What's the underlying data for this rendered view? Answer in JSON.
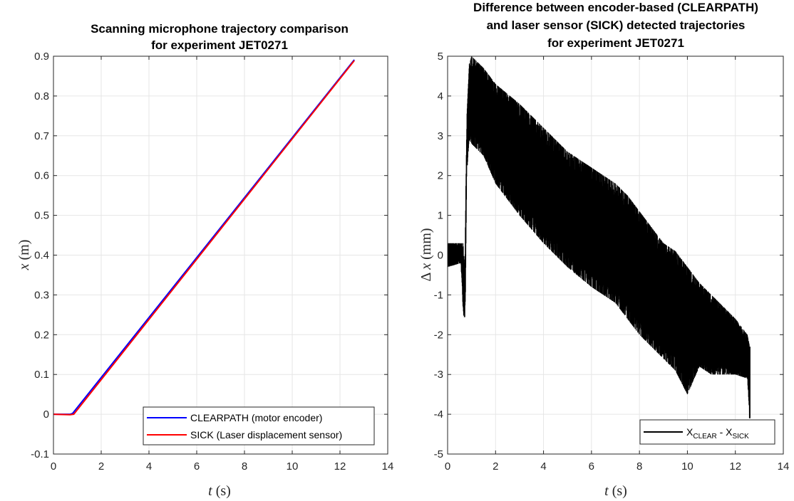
{
  "chart_data": [
    {
      "type": "line",
      "title": [
        "Scanning microphone trajectory comparison",
        "for experiment JET0271"
      ],
      "xlabel": {
        "var": "t",
        "unit": "(s)"
      },
      "ylabel": {
        "var": "x",
        "unit": "(m)"
      },
      "xlim": [
        0,
        14
      ],
      "ylim": [
        -0.1,
        0.9
      ],
      "xticks": [
        0,
        2,
        4,
        6,
        8,
        10,
        12,
        14
      ],
      "yticks": [
        -0.1,
        0,
        0.1,
        0.2,
        0.3,
        0.4,
        0.5,
        0.6,
        0.7,
        0.8,
        0.9
      ],
      "grid": true,
      "legend_position": "bottom-right",
      "series": [
        {
          "name": "CLEARPATH (motor encoder)",
          "color": "#0000ff",
          "x": [
            0,
            0.7,
            0.8,
            12.6
          ],
          "y": [
            0,
            0,
            0.002,
            0.891
          ]
        },
        {
          "name": "SICK (Laser displacement sensor)",
          "color": "#ff0000",
          "x": [
            0,
            0.7,
            0.85,
            12.6
          ],
          "y": [
            0,
            -0.001,
            0,
            0.889
          ]
        }
      ]
    },
    {
      "type": "line",
      "title": [
        "Difference between encoder-based (CLEARPATH)",
        "and laser sensor (SICK) detected trajectories",
        "for experiment  JET0271"
      ],
      "xlabel": {
        "var": "t",
        "unit": "(s)"
      },
      "ylabel": {
        "prefix": "Δ",
        "var": "x",
        "unit": "(mm)"
      },
      "xlim": [
        0,
        14
      ],
      "ylim": [
        -5,
        5
      ],
      "xticks": [
        0,
        2,
        4,
        6,
        8,
        10,
        12,
        14
      ],
      "yticks": [
        -5,
        -4,
        -3,
        -2,
        -1,
        0,
        1,
        2,
        3,
        4,
        5
      ],
      "grid": true,
      "legend_position": "bottom-right",
      "series": [
        {
          "name": "X",
          "name_sub1": "CLEAR",
          "name_sep": " - X",
          "name_sub2": "SICK",
          "color": "#000000",
          "envelope_t": [
            0,
            0.55,
            0.65,
            0.72,
            0.75,
            0.8,
            0.9,
            1.0,
            1.5,
            2,
            3,
            4,
            5,
            6,
            7,
            7.5,
            8,
            9,
            9.5,
            10,
            10.5,
            11,
            12,
            12.5,
            12.6
          ],
          "envelope_upper": [
            0.3,
            0.3,
            0.3,
            -0.3,
            1.5,
            3.5,
            4.8,
            5,
            4.7,
            4.3,
            3.8,
            3.2,
            2.6,
            2.2,
            1.8,
            1.5,
            1.1,
            0.3,
            0.1,
            -0.3,
            -0.7,
            -1.0,
            -1.6,
            -2.0,
            -2.3
          ],
          "envelope_lower": [
            -0.3,
            -0.2,
            -1.5,
            -1.6,
            -1.0,
            2.0,
            2.9,
            2.8,
            2.5,
            1.8,
            1.0,
            0.3,
            -0.3,
            -0.8,
            -1.2,
            -1.6,
            -2.0,
            -2.6,
            -2.9,
            -3.5,
            -2.8,
            -3.0,
            -3.0,
            -3.1,
            -4.1
          ]
        }
      ]
    }
  ]
}
